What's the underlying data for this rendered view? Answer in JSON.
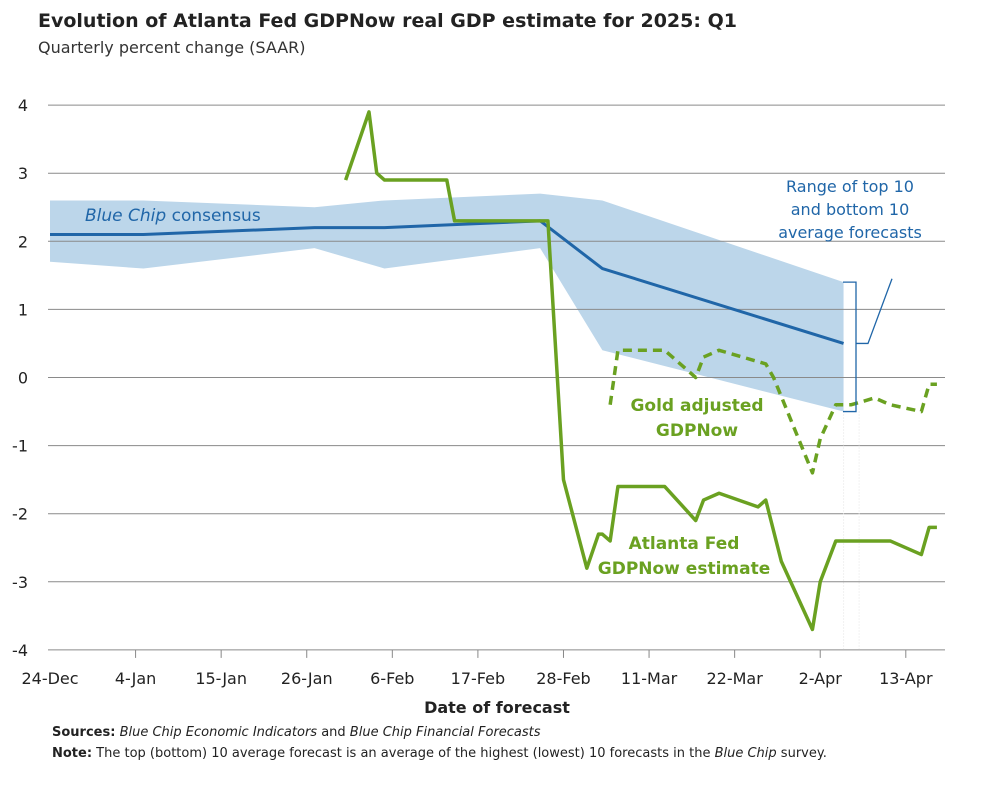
{
  "chart_data": {
    "type": "line",
    "title": "Evolution of Atlanta Fed GDPNow real GDP estimate for 2025: Q1",
    "subtitle": "Quarterly percent change (SAAR)",
    "xlabel": "Date of forecast",
    "ylabel": "",
    "x_units": "days since 24-Dec",
    "xlim": [
      0,
      115
    ],
    "ylim": [
      -4,
      4
    ],
    "y_ticks": [
      4,
      3,
      2,
      1,
      0,
      -1,
      -2,
      -3,
      -4
    ],
    "x_ticks": [
      {
        "day": 0,
        "label": "24-Dec"
      },
      {
        "day": 11,
        "label": "4-Jan"
      },
      {
        "day": 22,
        "label": "15-Jan"
      },
      {
        "day": 33,
        "label": "26-Jan"
      },
      {
        "day": 44,
        "label": "6-Feb"
      },
      {
        "day": 55,
        "label": "17-Feb"
      },
      {
        "day": 66,
        "label": "28-Feb"
      },
      {
        "day": 77,
        "label": "11-Mar"
      },
      {
        "day": 88,
        "label": "22-Mar"
      },
      {
        "day": 99,
        "label": "2-Apr"
      },
      {
        "day": 110,
        "label": "13-Apr"
      }
    ],
    "grid": true,
    "band": {
      "name": "Range of top 10 and bottom 10 average forecasts",
      "x": [
        0,
        12,
        34,
        43,
        63,
        71,
        102
      ],
      "upper": [
        2.6,
        2.6,
        2.5,
        2.6,
        2.7,
        2.6,
        1.4
      ],
      "lower": [
        1.7,
        1.6,
        1.9,
        1.6,
        1.9,
        0.4,
        -0.5
      ]
    },
    "series": [
      {
        "name": "Blue Chip consensus",
        "style": "solid",
        "color": "#2066a8",
        "x": [
          0,
          12,
          34,
          43,
          63,
          71,
          102
        ],
        "y": [
          2.1,
          2.1,
          2.2,
          2.2,
          2.3,
          1.6,
          0.5
        ]
      },
      {
        "name": "Atlanta Fed GDPNow estimate",
        "style": "solid",
        "color": "#6aa121",
        "x": [
          38,
          41,
          42,
          43,
          51,
          52,
          63,
          64,
          66,
          69,
          70.5,
          71,
          72,
          73,
          79,
          83,
          84,
          86,
          91,
          92,
          94,
          98,
          99,
          100,
          101,
          108,
          112,
          113,
          114
        ],
        "y": [
          2.9,
          3.9,
          3.0,
          2.9,
          2.9,
          2.3,
          2.3,
          2.3,
          -1.5,
          -2.8,
          -2.3,
          -2.3,
          -2.4,
          -1.6,
          -1.6,
          -2.1,
          -1.8,
          -1.7,
          -1.9,
          -1.8,
          -2.7,
          -3.7,
          -3.0,
          -2.7,
          -2.4,
          -2.4,
          -2.6,
          -2.2,
          -2.2
        ]
      },
      {
        "name": "Gold adjusted GDPNow",
        "style": "dashed",
        "color": "#6aa121",
        "x": [
          72,
          73,
          79,
          83,
          84,
          86,
          92,
          93,
          98,
          99,
          101,
          103,
          106,
          108,
          112,
          113,
          114
        ],
        "y": [
          -0.4,
          0.4,
          0.4,
          0.0,
          0.3,
          0.4,
          0.2,
          0.0,
          -1.4,
          -0.9,
          -0.4,
          -0.4,
          -0.3,
          -0.4,
          -0.5,
          -0.1,
          -0.1
        ]
      }
    ],
    "annotations": {
      "blue_chip": [
        "Blue Chip",
        " consensus"
      ],
      "range": [
        "Range of top 10",
        "and bottom 10",
        "average forecasts"
      ],
      "gold": [
        "Gold adjusted",
        "GDPNow"
      ],
      "gdpnow": [
        "Atlanta Fed",
        "GDPNow estimate"
      ]
    }
  },
  "footer": {
    "sources_label": "Sources:",
    "sources_text1": "Blue Chip Economic Indicators",
    "sources_and": " and ",
    "sources_text2": "Blue Chip Financial Forecasts",
    "note_label": "Note:",
    "note_text1": " The top (bottom) 10 average forecast is an average of the highest (lowest) 10 forecasts in the ",
    "note_italic": "Blue Chip",
    "note_text2": " survey."
  }
}
